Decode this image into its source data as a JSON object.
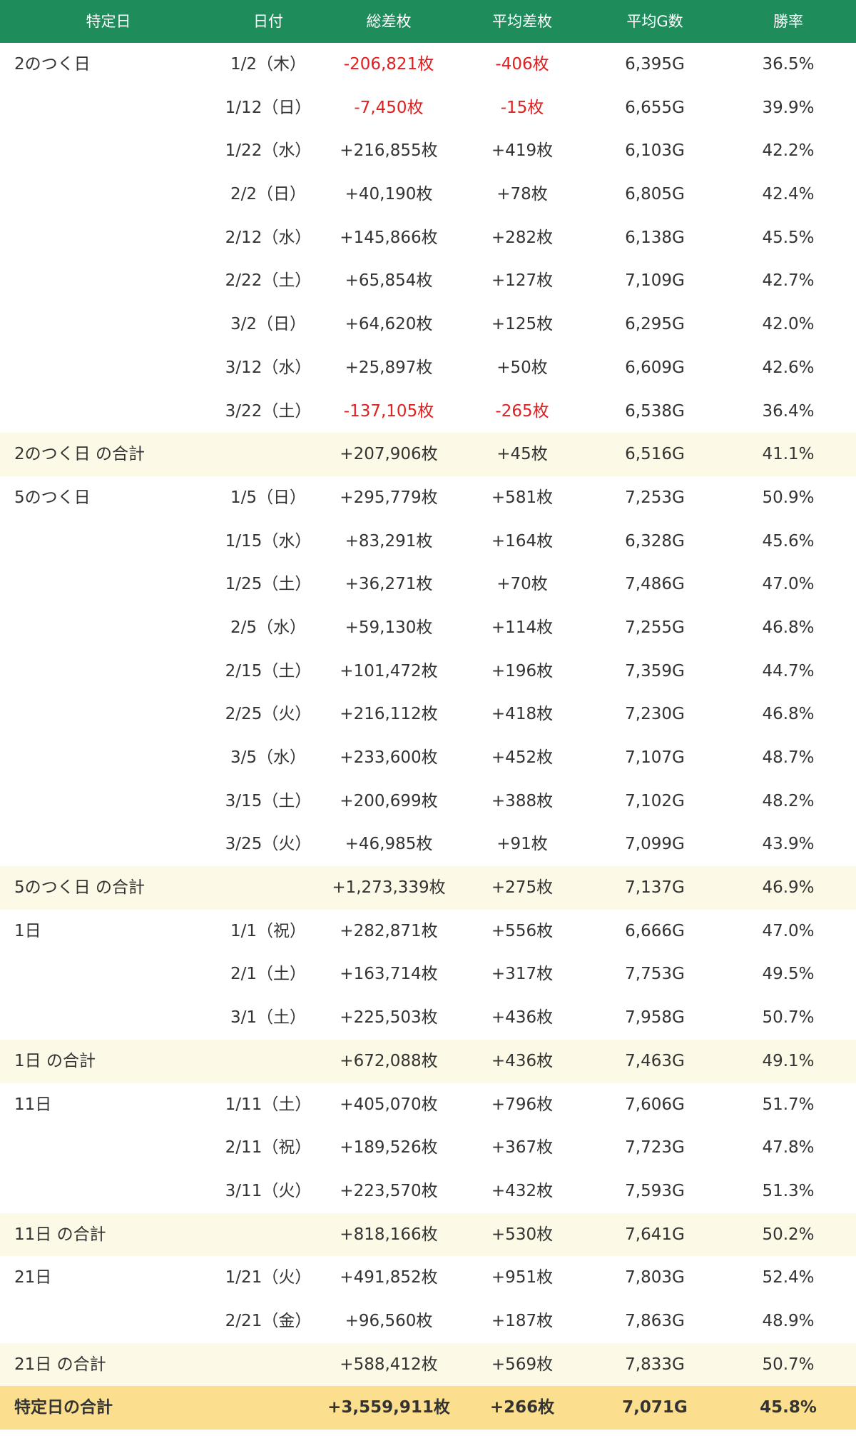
{
  "colors": {
    "header_bg": "#1f8c5c",
    "header_text": "#ffffff",
    "subtotal_bg": "#fcf9e6",
    "grand_total_bg": "#fbdf8e",
    "negative": "#e02020",
    "text": "#333333"
  },
  "headers": [
    "特定日",
    "日付",
    "総差枚",
    "平均差枚",
    "平均G数",
    "勝率"
  ],
  "rows": [
    {
      "type": "data",
      "label": "2のつく日",
      "date": "1/2（木）",
      "total": "-206,821枚",
      "avg": "-406枚",
      "g": "6,395G",
      "rate": "36.5%",
      "neg": true
    },
    {
      "type": "data",
      "label": "",
      "date": "1/12（日）",
      "total": "-7,450枚",
      "avg": "-15枚",
      "g": "6,655G",
      "rate": "39.9%",
      "neg": true
    },
    {
      "type": "data",
      "label": "",
      "date": "1/22（水）",
      "total": "+216,855枚",
      "avg": "+419枚",
      "g": "6,103G",
      "rate": "42.2%"
    },
    {
      "type": "data",
      "label": "",
      "date": "2/2（日）",
      "total": "+40,190枚",
      "avg": "+78枚",
      "g": "6,805G",
      "rate": "42.4%"
    },
    {
      "type": "data",
      "label": "",
      "date": "2/12（水）",
      "total": "+145,866枚",
      "avg": "+282枚",
      "g": "6,138G",
      "rate": "45.5%"
    },
    {
      "type": "data",
      "label": "",
      "date": "2/22（土）",
      "total": "+65,854枚",
      "avg": "+127枚",
      "g": "7,109G",
      "rate": "42.7%"
    },
    {
      "type": "data",
      "label": "",
      "date": "3/2（日）",
      "total": "+64,620枚",
      "avg": "+125枚",
      "g": "6,295G",
      "rate": "42.0%"
    },
    {
      "type": "data",
      "label": "",
      "date": "3/12（水）",
      "total": "+25,897枚",
      "avg": "+50枚",
      "g": "6,609G",
      "rate": "42.6%"
    },
    {
      "type": "data",
      "label": "",
      "date": "3/22（土）",
      "total": "-137,105枚",
      "avg": "-265枚",
      "g": "6,538G",
      "rate": "36.4%",
      "neg": true
    },
    {
      "type": "subtotal",
      "label": "2のつく日 の合計",
      "date": "",
      "total": "+207,906枚",
      "avg": "+45枚",
      "g": "6,516G",
      "rate": "41.1%"
    },
    {
      "type": "data",
      "label": "5のつく日",
      "date": "1/5（日）",
      "total": "+295,779枚",
      "avg": "+581枚",
      "g": "7,253G",
      "rate": "50.9%"
    },
    {
      "type": "data",
      "label": "",
      "date": "1/15（水）",
      "total": "+83,291枚",
      "avg": "+164枚",
      "g": "6,328G",
      "rate": "45.6%"
    },
    {
      "type": "data",
      "label": "",
      "date": "1/25（土）",
      "total": "+36,271枚",
      "avg": "+70枚",
      "g": "7,486G",
      "rate": "47.0%"
    },
    {
      "type": "data",
      "label": "",
      "date": "2/5（水）",
      "total": "+59,130枚",
      "avg": "+114枚",
      "g": "7,255G",
      "rate": "46.8%"
    },
    {
      "type": "data",
      "label": "",
      "date": "2/15（土）",
      "total": "+101,472枚",
      "avg": "+196枚",
      "g": "7,359G",
      "rate": "44.7%"
    },
    {
      "type": "data",
      "label": "",
      "date": "2/25（火）",
      "total": "+216,112枚",
      "avg": "+418枚",
      "g": "7,230G",
      "rate": "46.8%"
    },
    {
      "type": "data",
      "label": "",
      "date": "3/5（水）",
      "total": "+233,600枚",
      "avg": "+452枚",
      "g": "7,107G",
      "rate": "48.7%"
    },
    {
      "type": "data",
      "label": "",
      "date": "3/15（土）",
      "total": "+200,699枚",
      "avg": "+388枚",
      "g": "7,102G",
      "rate": "48.2%"
    },
    {
      "type": "data",
      "label": "",
      "date": "3/25（火）",
      "total": "+46,985枚",
      "avg": "+91枚",
      "g": "7,099G",
      "rate": "43.9%"
    },
    {
      "type": "subtotal",
      "label": "5のつく日 の合計",
      "date": "",
      "total": "+1,273,339枚",
      "avg": "+275枚",
      "g": "7,137G",
      "rate": "46.9%"
    },
    {
      "type": "data",
      "label": "1日",
      "date": "1/1（祝）",
      "total": "+282,871枚",
      "avg": "+556枚",
      "g": "6,666G",
      "rate": "47.0%"
    },
    {
      "type": "data",
      "label": "",
      "date": "2/1（土）",
      "total": "+163,714枚",
      "avg": "+317枚",
      "g": "7,753G",
      "rate": "49.5%"
    },
    {
      "type": "data",
      "label": "",
      "date": "3/1（土）",
      "total": "+225,503枚",
      "avg": "+436枚",
      "g": "7,958G",
      "rate": "50.7%"
    },
    {
      "type": "subtotal",
      "label": "1日 の合計",
      "date": "",
      "total": "+672,088枚",
      "avg": "+436枚",
      "g": "7,463G",
      "rate": "49.1%"
    },
    {
      "type": "data",
      "label": "11日",
      "date": "1/11（土）",
      "total": "+405,070枚",
      "avg": "+796枚",
      "g": "7,606G",
      "rate": "51.7%"
    },
    {
      "type": "data",
      "label": "",
      "date": "2/11（祝）",
      "total": "+189,526枚",
      "avg": "+367枚",
      "g": "7,723G",
      "rate": "47.8%"
    },
    {
      "type": "data",
      "label": "",
      "date": "3/11（火）",
      "total": "+223,570枚",
      "avg": "+432枚",
      "g": "7,593G",
      "rate": "51.3%"
    },
    {
      "type": "subtotal",
      "label": "11日 の合計",
      "date": "",
      "total": "+818,166枚",
      "avg": "+530枚",
      "g": "7,641G",
      "rate": "50.2%"
    },
    {
      "type": "data",
      "label": "21日",
      "date": "1/21（火）",
      "total": "+491,852枚",
      "avg": "+951枚",
      "g": "7,803G",
      "rate": "52.4%"
    },
    {
      "type": "data",
      "label": "",
      "date": "2/21（金）",
      "total": "+96,560枚",
      "avg": "+187枚",
      "g": "7,863G",
      "rate": "48.9%"
    },
    {
      "type": "subtotal",
      "label": "21日 の合計",
      "date": "",
      "total": "+588,412枚",
      "avg": "+569枚",
      "g": "7,833G",
      "rate": "50.7%"
    },
    {
      "type": "grand",
      "label": "特定日の合計",
      "date": "",
      "total": "+3,559,911枚",
      "avg": "+266枚",
      "g": "7,071G",
      "rate": "45.8%"
    }
  ]
}
